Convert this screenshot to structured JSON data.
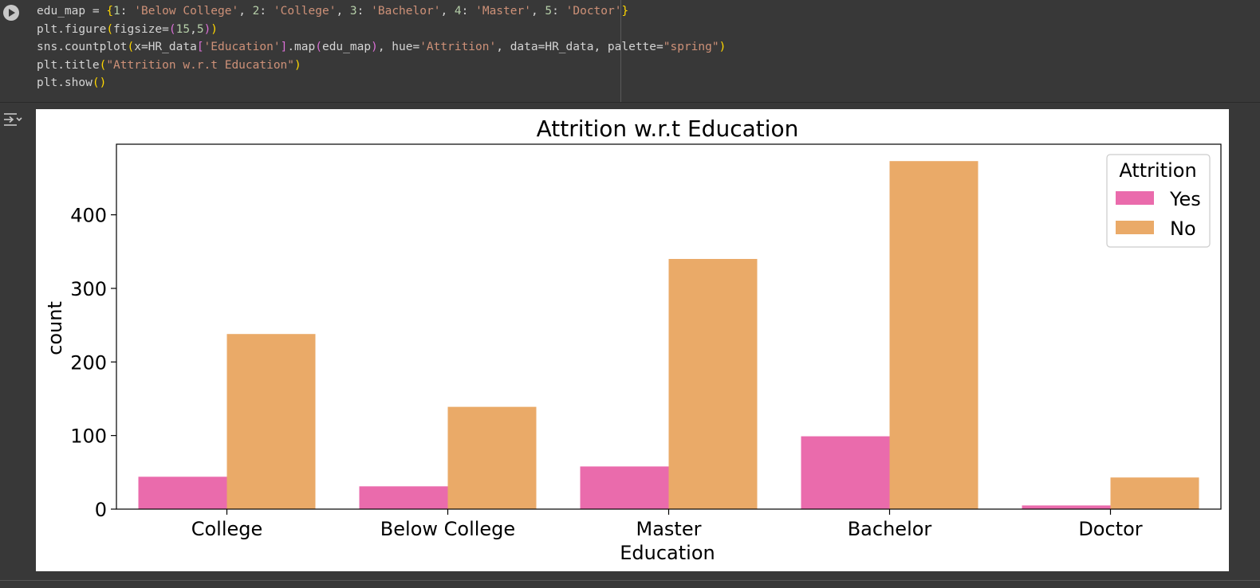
{
  "code_cell": {
    "lines": [
      [
        [
          "var",
          "edu_map = "
        ],
        [
          "b1",
          "{"
        ],
        [
          "num",
          "1"
        ],
        [
          "var",
          ": "
        ],
        [
          "str",
          "'Below College'"
        ],
        [
          "var",
          ", "
        ],
        [
          "num",
          "2"
        ],
        [
          "var",
          ": "
        ],
        [
          "str",
          "'College'"
        ],
        [
          "var",
          ", "
        ],
        [
          "num",
          "3"
        ],
        [
          "var",
          ": "
        ],
        [
          "str",
          "'Bachelor'"
        ],
        [
          "var",
          ", "
        ],
        [
          "num",
          "4"
        ],
        [
          "var",
          ": "
        ],
        [
          "str",
          "'Master'"
        ],
        [
          "var",
          ", "
        ],
        [
          "num",
          "5"
        ],
        [
          "var",
          ": "
        ],
        [
          "str",
          "'Doctor'"
        ],
        [
          "b1",
          "}"
        ]
      ],
      [
        [
          "var",
          "plt.figure"
        ],
        [
          "b1",
          "("
        ],
        [
          "var",
          "figsize="
        ],
        [
          "b2",
          "("
        ],
        [
          "num",
          "15"
        ],
        [
          "var",
          ","
        ],
        [
          "num",
          "5"
        ],
        [
          "b2",
          ")"
        ],
        [
          "b1",
          ")"
        ]
      ],
      [
        [
          "var",
          "sns.countplot"
        ],
        [
          "b1",
          "("
        ],
        [
          "var",
          "x=HR_data"
        ],
        [
          "b2",
          "["
        ],
        [
          "str",
          "'Education'"
        ],
        [
          "b2",
          "]"
        ],
        [
          "var",
          ".map"
        ],
        [
          "b2",
          "("
        ],
        [
          "var",
          "edu_map"
        ],
        [
          "b2",
          ")"
        ],
        [
          "var",
          ", hue="
        ],
        [
          "str",
          "'Attrition'"
        ],
        [
          "var",
          ", data=HR_data, palette="
        ],
        [
          "str",
          "\"spring\""
        ],
        [
          "b1",
          ")"
        ]
      ],
      [
        [
          "var",
          "plt.title"
        ],
        [
          "b1",
          "("
        ],
        [
          "str",
          "\"Attrition w.r.t Education\""
        ],
        [
          "b1",
          ")"
        ]
      ],
      [
        [
          "var",
          "plt.show"
        ],
        [
          "b1",
          "()"
        ]
      ]
    ]
  },
  "colors": {
    "yes": "#EA6BAC",
    "no": "#EAAA68",
    "editor_bg": "#383838"
  },
  "chart_data": {
    "type": "bar",
    "title": "Attrition w.r.t Education",
    "xlabel": "Education",
    "ylabel": "count",
    "categories": [
      "College",
      "Below College",
      "Master",
      "Bachelor",
      "Doctor"
    ],
    "series": [
      {
        "name": "Yes",
        "values": [
          44,
          31,
          58,
          99,
          5
        ]
      },
      {
        "name": "No",
        "values": [
          238,
          139,
          340,
          473,
          43
        ]
      }
    ],
    "yticks": [
      0,
      100,
      200,
      300,
      400
    ],
    "ylim": [
      0,
      496
    ],
    "legend": {
      "title": "Attrition",
      "placement": "top-right"
    },
    "grid": false
  }
}
